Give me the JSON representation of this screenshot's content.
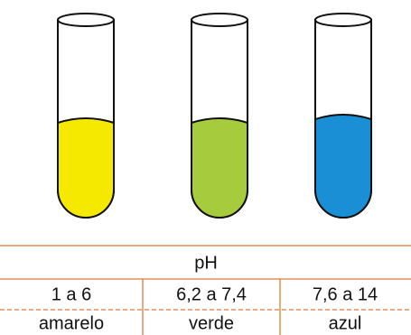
{
  "table": {
    "header": "pH",
    "rows": [
      [
        "1 a 6",
        "6,2 a 7,4",
        "7,6 a 14"
      ],
      [
        "amarelo",
        "verde",
        "azul"
      ]
    ]
  }
}
